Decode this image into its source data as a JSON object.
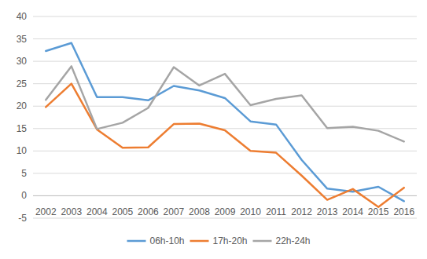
{
  "chart_data": {
    "type": "line",
    "categories": [
      "2002",
      "2003",
      "2004",
      "2005",
      "2006",
      "2007",
      "2008",
      "2009",
      "2010",
      "2011",
      "2012",
      "2013",
      "2014",
      "2015",
      "2016"
    ],
    "series": [
      {
        "name": "06h-10h",
        "color": "#5b9bd5",
        "values": [
          32.3,
          34.1,
          22.0,
          22.0,
          21.3,
          24.5,
          23.5,
          21.8,
          16.6,
          15.9,
          8.0,
          1.6,
          0.9,
          2.0,
          -1.2
        ]
      },
      {
        "name": "17h-20h",
        "color": "#ed7d31",
        "values": [
          19.8,
          25.0,
          14.8,
          10.7,
          10.8,
          16.0,
          16.1,
          14.6,
          10.0,
          9.6,
          4.5,
          -0.9,
          1.5,
          -2.5,
          1.8
        ]
      },
      {
        "name": "22h-24h",
        "color": "#a5a5a5",
        "values": [
          21.4,
          28.9,
          14.9,
          16.3,
          19.6,
          28.7,
          24.6,
          27.2,
          20.2,
          21.6,
          22.4,
          15.1,
          15.4,
          14.5,
          12.1
        ]
      }
    ],
    "ylim": [
      -5,
      40
    ],
    "yticks": [
      -5,
      0,
      5,
      10,
      15,
      20,
      25,
      30,
      35,
      40
    ],
    "grid": true,
    "legend": "bottom"
  }
}
